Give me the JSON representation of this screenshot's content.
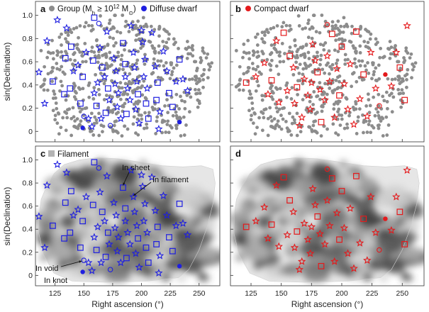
{
  "chart_data": {
    "type": "scatter",
    "panels": [
      {
        "label": "a",
        "legend": [
          "Group (M",
          "h",
          " ≥ 10",
          "12",
          " M",
          "⊙",
          ")",
          "Diffuse dwarf"
        ],
        "background": "none",
        "dwarf_color": "#1f1fe0"
      },
      {
        "label": "b",
        "legend": [
          "Compact dwarf"
        ],
        "background": "none",
        "dwarf_color": "#e41a1c"
      },
      {
        "label": "c",
        "legend": [
          "Filament"
        ],
        "background": "density-map",
        "dwarf_color": "#1f1fe0"
      },
      {
        "label": "d",
        "legend": [],
        "background": "density-map",
        "dwarf_color": "#e41a1c"
      }
    ],
    "xlabel": "Right ascension (°)",
    "ylabel": "sin(Declination)",
    "xlim": [
      108,
      268
    ],
    "ylim": [
      -0.09,
      1.12
    ],
    "xticks": [
      "125",
      "150",
      "175",
      "200",
      "225",
      "250"
    ],
    "yticks": [
      "0",
      "0.2",
      "0.4",
      "0.6",
      "0.8",
      "1.0"
    ],
    "annotations": [
      "In sheet",
      "In filament",
      "In void",
      "In knot"
    ],
    "marker_meaning": {
      "star": "In filament",
      "square": "In sheet",
      "open-circle": "In void",
      "filled-circle": "In knot"
    },
    "group_color": "#8c8c8c",
    "filament_color": "#b4b4b4",
    "diffuse_dwarfs": [
      [
        127,
        0.96,
        "star"
      ],
      [
        118,
        0.78,
        "star"
      ],
      [
        111,
        0.51,
        "star"
      ],
      [
        123,
        0.43,
        "square"
      ],
      [
        116,
        0.24,
        "star"
      ],
      [
        135,
        0.89,
        "star"
      ],
      [
        139,
        0.73,
        "square"
      ],
      [
        134,
        0.63,
        "square"
      ],
      [
        141,
        0.52,
        "star"
      ],
      [
        138,
        0.37,
        "square"
      ],
      [
        133,
        0.32,
        "square"
      ],
      [
        145,
        0.57,
        "star"
      ],
      [
        149,
        0.47,
        "square"
      ],
      [
        152,
        0.68,
        "star"
      ],
      [
        147,
        0.24,
        "square"
      ],
      [
        154,
        0.11,
        "star"
      ],
      [
        149,
        0.03,
        "filled-circle"
      ],
      [
        150,
        0.13,
        "open-circle"
      ],
      [
        158,
        0.61,
        "square"
      ],
      [
        162,
        0.42,
        "star"
      ],
      [
        159,
        0.33,
        "star"
      ],
      [
        161,
        0.22,
        "square"
      ],
      [
        166,
        0.55,
        "square"
      ],
      [
        164,
        0.72,
        "star"
      ],
      [
        157,
        0.04,
        "star"
      ],
      [
        159,
        0.98,
        "square"
      ],
      [
        163,
        0.93,
        "open-circle"
      ],
      [
        170,
        0.86,
        "star"
      ],
      [
        168,
        0.47,
        "star"
      ],
      [
        171,
        0.37,
        "square"
      ],
      [
        172,
        0.27,
        "star"
      ],
      [
        169,
        0.16,
        "square"
      ],
      [
        173,
        0.05,
        "open-circle"
      ],
      [
        176,
        0.63,
        "star"
      ],
      [
        178,
        0.52,
        "star"
      ],
      [
        177,
        0.41,
        "star"
      ],
      [
        180,
        0.33,
        "star"
      ],
      [
        179,
        0.21,
        "star"
      ],
      [
        182,
        0.11,
        "star"
      ],
      [
        184,
        0.76,
        "square"
      ],
      [
        186,
        0.58,
        "square"
      ],
      [
        186,
        0.47,
        "star"
      ],
      [
        188,
        0.37,
        "star"
      ],
      [
        190,
        0.27,
        "star"
      ],
      [
        187,
        0.15,
        "square"
      ],
      [
        191,
        0.91,
        "star"
      ],
      [
        193,
        0.68,
        "star"
      ],
      [
        194,
        0.55,
        "star"
      ],
      [
        196,
        0.43,
        "star"
      ],
      [
        197,
        0.32,
        "square"
      ],
      [
        195,
        0.19,
        "star"
      ],
      [
        198,
        0.07,
        "star"
      ],
      [
        201,
        0.77,
        "star"
      ],
      [
        203,
        0.62,
        "star"
      ],
      [
        202,
        0.47,
        "star"
      ],
      [
        205,
        0.37,
        "star"
      ],
      [
        204,
        0.24,
        "square"
      ],
      [
        206,
        0.11,
        "square"
      ],
      [
        209,
        0.85,
        "star"
      ],
      [
        212,
        0.56,
        "star"
      ],
      [
        214,
        0.42,
        "square"
      ],
      [
        213,
        0.27,
        "square"
      ],
      [
        216,
        0.17,
        "star"
      ],
      [
        219,
        0.69,
        "star"
      ],
      [
        222,
        0.52,
        "star"
      ],
      [
        224,
        0.33,
        "square"
      ],
      [
        227,
        0.21,
        "square"
      ],
      [
        230,
        0.43,
        "star"
      ],
      [
        233,
        0.62,
        "square"
      ],
      [
        236,
        0.45,
        "star"
      ],
      [
        240,
        0.35,
        "star"
      ],
      [
        233,
        0.08,
        "filled-circle"
      ],
      [
        215,
        0.02,
        "star"
      ],
      [
        200,
        0.87,
        "star"
      ],
      [
        165,
        0.11,
        "star"
      ]
    ],
    "compact_dwarfs": [
      [
        254,
        0.91,
        "star"
      ],
      [
        248,
        0.55,
        "square"
      ],
      [
        252,
        0.27,
        "square"
      ],
      [
        245,
        0.68,
        "star"
      ],
      [
        241,
        0.39,
        "star"
      ],
      [
        121,
        0.42,
        "square"
      ],
      [
        129,
        0.47,
        "star"
      ],
      [
        136,
        0.59,
        "star"
      ],
      [
        142,
        0.44,
        "square"
      ],
      [
        139,
        0.32,
        "star"
      ],
      [
        146,
        0.78,
        "star"
      ],
      [
        152,
        0.85,
        "square"
      ],
      [
        157,
        0.65,
        "square"
      ],
      [
        155,
        0.35,
        "star"
      ],
      [
        160,
        0.55,
        "star"
      ],
      [
        163,
        0.38,
        "square"
      ],
      [
        161,
        0.24,
        "star"
      ],
      [
        167,
        0.12,
        "star"
      ],
      [
        165,
        0.05,
        "star"
      ],
      [
        169,
        0.45,
        "star"
      ],
      [
        172,
        0.31,
        "star"
      ],
      [
        174,
        0.19,
        "star"
      ],
      [
        176,
        0.75,
        "star"
      ],
      [
        178,
        0.61,
        "star"
      ],
      [
        180,
        0.51,
        "square"
      ],
      [
        182,
        0.36,
        "star"
      ],
      [
        183,
        0.08,
        "square"
      ],
      [
        186,
        0.27,
        "star"
      ],
      [
        188,
        0.65,
        "star"
      ],
      [
        190,
        0.43,
        "star"
      ],
      [
        192,
        0.84,
        "square"
      ],
      [
        194,
        0.12,
        "star"
      ],
      [
        196,
        0.54,
        "star"
      ],
      [
        198,
        0.31,
        "square"
      ],
      [
        200,
        0.73,
        "square"
      ],
      [
        202,
        0.41,
        "star"
      ],
      [
        205,
        0.19,
        "star"
      ],
      [
        207,
        0.58,
        "star"
      ],
      [
        210,
        0.06,
        "star"
      ],
      [
        212,
        0.86,
        "square"
      ],
      [
        215,
        0.28,
        "star"
      ],
      [
        218,
        0.49,
        "square"
      ],
      [
        221,
        0.13,
        "star"
      ],
      [
        224,
        0.68,
        "star"
      ],
      [
        228,
        0.37,
        "star"
      ],
      [
        231,
        0.22,
        "open-circle"
      ],
      [
        236,
        0.49,
        "filled-circle"
      ],
      [
        188,
        0.92,
        "open-circle"
      ],
      [
        148,
        0.25,
        "star"
      ],
      [
        175,
        0.42,
        "star"
      ]
    ]
  }
}
